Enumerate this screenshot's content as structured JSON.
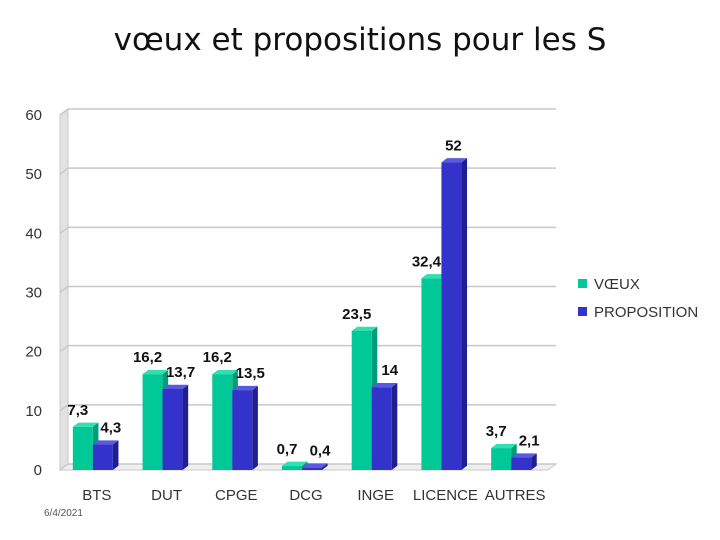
{
  "slide": {
    "title": "vœux et propositions pour les S",
    "date": "6/4/2021"
  },
  "colors": {
    "voeux": "#00c896",
    "voeux_side": "#009e76",
    "voeux_top": "#2fe0b0",
    "proposition": "#3333cc",
    "proposition_side": "#1f1f8f",
    "proposition_top": "#5a5ae0",
    "grid": "#c8c8c8",
    "wall": "#e2e2e2"
  },
  "chart_data": {
    "type": "bar",
    "title": "vœux et propositions pour les S",
    "xlabel": "",
    "ylabel": "",
    "ylim": [
      0,
      60
    ],
    "yticks": [
      0,
      10,
      20,
      30,
      40,
      50,
      60
    ],
    "grid": true,
    "legend": "right",
    "categories": [
      "BTS",
      "DUT",
      "CPGE",
      "DCG",
      "INGE",
      "LICENCE",
      "AUTRES"
    ],
    "series": [
      {
        "name": "VŒUX",
        "values": [
          7.3,
          16.2,
          16.2,
          0.7,
          23.5,
          32.4,
          3.7
        ],
        "labels": [
          "7,3",
          "16,2",
          "16,2",
          "0,7",
          "23,5",
          "32,4",
          "3,7"
        ]
      },
      {
        "name": "PROPOSITION",
        "values": [
          4.3,
          13.7,
          13.5,
          0.4,
          14,
          52,
          2.1
        ],
        "labels": [
          "4,3",
          "13,7",
          "13,5",
          "0,4",
          "14",
          "52",
          "2,1"
        ]
      }
    ]
  }
}
